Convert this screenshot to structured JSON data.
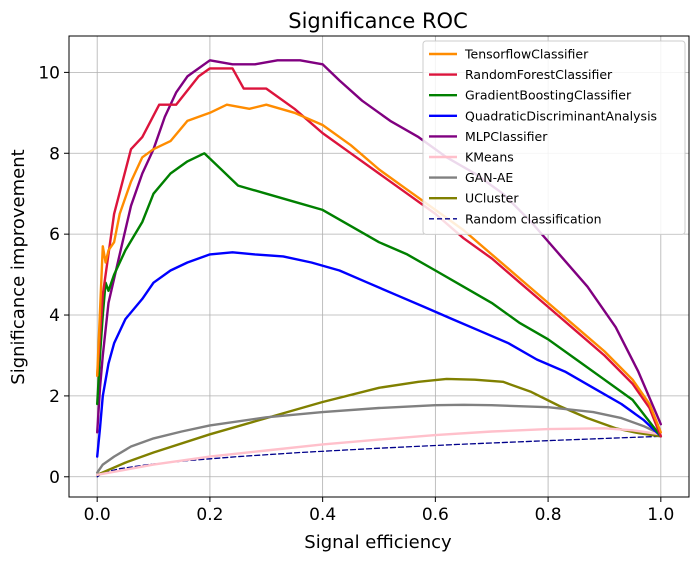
{
  "chart_data": {
    "type": "line",
    "title": "Significance ROC",
    "xlabel": "Signal efficiency",
    "ylabel": "Significance improvement",
    "xlim": [
      -0.05,
      1.05
    ],
    "ylim": [
      -0.5,
      10.9
    ],
    "xticks": [
      0.0,
      0.2,
      0.4,
      0.6,
      0.8,
      1.0
    ],
    "xtick_labels": [
      "0.0",
      "0.2",
      "0.4",
      "0.6",
      "0.8",
      "1.0"
    ],
    "yticks": [
      0,
      2,
      4,
      6,
      8,
      10
    ],
    "ytick_labels": [
      "0",
      "2",
      "4",
      "6",
      "8",
      "10"
    ],
    "grid": true,
    "legend_position": "top-right",
    "series": [
      {
        "name": "TensorflowClassifier",
        "color": "#ff8c00",
        "style": "solid",
        "points": [
          [
            0.0,
            2.5
          ],
          [
            0.01,
            5.7
          ],
          [
            0.015,
            5.3
          ],
          [
            0.02,
            5.6
          ],
          [
            0.03,
            5.8
          ],
          [
            0.04,
            6.5
          ],
          [
            0.06,
            7.3
          ],
          [
            0.08,
            7.9
          ],
          [
            0.1,
            8.1
          ],
          [
            0.13,
            8.3
          ],
          [
            0.16,
            8.8
          ],
          [
            0.2,
            9.0
          ],
          [
            0.23,
            9.2
          ],
          [
            0.27,
            9.1
          ],
          [
            0.3,
            9.2
          ],
          [
            0.35,
            9.0
          ],
          [
            0.4,
            8.7
          ],
          [
            0.45,
            8.2
          ],
          [
            0.5,
            7.6
          ],
          [
            0.55,
            7.1
          ],
          [
            0.6,
            6.6
          ],
          [
            0.65,
            6.1
          ],
          [
            0.7,
            5.5
          ],
          [
            0.75,
            4.9
          ],
          [
            0.8,
            4.3
          ],
          [
            0.85,
            3.7
          ],
          [
            0.9,
            3.1
          ],
          [
            0.95,
            2.4
          ],
          [
            0.98,
            1.8
          ],
          [
            1.0,
            1.1
          ]
        ]
      },
      {
        "name": "RandomForestClassifier",
        "color": "#dc143c",
        "style": "solid",
        "points": [
          [
            0.0,
            2.5
          ],
          [
            0.01,
            4.5
          ],
          [
            0.03,
            6.5
          ],
          [
            0.06,
            8.1
          ],
          [
            0.08,
            8.4
          ],
          [
            0.11,
            9.2
          ],
          [
            0.14,
            9.2
          ],
          [
            0.18,
            9.9
          ],
          [
            0.2,
            10.1
          ],
          [
            0.24,
            10.1
          ],
          [
            0.26,
            9.6
          ],
          [
            0.3,
            9.6
          ],
          [
            0.35,
            9.1
          ],
          [
            0.4,
            8.5
          ],
          [
            0.45,
            8.0
          ],
          [
            0.5,
            7.5
          ],
          [
            0.55,
            7.0
          ],
          [
            0.6,
            6.5
          ],
          [
            0.65,
            5.9
          ],
          [
            0.7,
            5.4
          ],
          [
            0.75,
            4.8
          ],
          [
            0.8,
            4.2
          ],
          [
            0.85,
            3.6
          ],
          [
            0.9,
            3.0
          ],
          [
            0.95,
            2.3
          ],
          [
            0.98,
            1.7
          ],
          [
            1.0,
            1.0
          ]
        ]
      },
      {
        "name": "GradientBoostingClassifier",
        "color": "#008000",
        "style": "solid",
        "points": [
          [
            0.0,
            1.8
          ],
          [
            0.005,
            3.0
          ],
          [
            0.01,
            4.0
          ],
          [
            0.015,
            4.8
          ],
          [
            0.02,
            4.6
          ],
          [
            0.03,
            5.0
          ],
          [
            0.05,
            5.6
          ],
          [
            0.08,
            6.3
          ],
          [
            0.1,
            7.0
          ],
          [
            0.13,
            7.5
          ],
          [
            0.16,
            7.8
          ],
          [
            0.19,
            8.0
          ],
          [
            0.22,
            7.6
          ],
          [
            0.25,
            7.2
          ],
          [
            0.3,
            7.0
          ],
          [
            0.35,
            6.8
          ],
          [
            0.4,
            6.6
          ],
          [
            0.45,
            6.2
          ],
          [
            0.5,
            5.8
          ],
          [
            0.55,
            5.5
          ],
          [
            0.6,
            5.1
          ],
          [
            0.65,
            4.7
          ],
          [
            0.7,
            4.3
          ],
          [
            0.75,
            3.8
          ],
          [
            0.8,
            3.4
          ],
          [
            0.85,
            2.9
          ],
          [
            0.9,
            2.4
          ],
          [
            0.95,
            1.9
          ],
          [
            1.0,
            1.0
          ]
        ]
      },
      {
        "name": "QuadraticDiscriminantAnalysis",
        "color": "#0000ff",
        "style": "solid",
        "points": [
          [
            0.0,
            0.5
          ],
          [
            0.005,
            1.2
          ],
          [
            0.01,
            2.0
          ],
          [
            0.02,
            2.8
          ],
          [
            0.03,
            3.3
          ],
          [
            0.05,
            3.9
          ],
          [
            0.08,
            4.4
          ],
          [
            0.1,
            4.8
          ],
          [
            0.13,
            5.1
          ],
          [
            0.16,
            5.3
          ],
          [
            0.2,
            5.5
          ],
          [
            0.24,
            5.55
          ],
          [
            0.28,
            5.5
          ],
          [
            0.33,
            5.45
          ],
          [
            0.38,
            5.3
          ],
          [
            0.43,
            5.1
          ],
          [
            0.48,
            4.8
          ],
          [
            0.53,
            4.5
          ],
          [
            0.58,
            4.2
          ],
          [
            0.63,
            3.9
          ],
          [
            0.68,
            3.6
          ],
          [
            0.73,
            3.3
          ],
          [
            0.78,
            2.9
          ],
          [
            0.83,
            2.6
          ],
          [
            0.88,
            2.2
          ],
          [
            0.93,
            1.8
          ],
          [
            0.97,
            1.4
          ],
          [
            1.0,
            1.0
          ]
        ]
      },
      {
        "name": "MLPClassifier",
        "color": "#800080",
        "style": "solid",
        "points": [
          [
            0.0,
            1.1
          ],
          [
            0.005,
            2.2
          ],
          [
            0.01,
            3.0
          ],
          [
            0.02,
            4.3
          ],
          [
            0.04,
            5.5
          ],
          [
            0.06,
            6.7
          ],
          [
            0.08,
            7.5
          ],
          [
            0.1,
            8.1
          ],
          [
            0.12,
            8.9
          ],
          [
            0.14,
            9.5
          ],
          [
            0.16,
            9.9
          ],
          [
            0.18,
            10.1
          ],
          [
            0.2,
            10.3
          ],
          [
            0.24,
            10.2
          ],
          [
            0.28,
            10.2
          ],
          [
            0.32,
            10.3
          ],
          [
            0.36,
            10.3
          ],
          [
            0.4,
            10.2
          ],
          [
            0.43,
            9.8
          ],
          [
            0.47,
            9.3
          ],
          [
            0.52,
            8.8
          ],
          [
            0.57,
            8.4
          ],
          [
            0.62,
            7.9
          ],
          [
            0.67,
            7.5
          ],
          [
            0.72,
            7.0
          ],
          [
            0.77,
            6.3
          ],
          [
            0.82,
            5.5
          ],
          [
            0.87,
            4.7
          ],
          [
            0.92,
            3.7
          ],
          [
            0.96,
            2.6
          ],
          [
            1.0,
            1.3
          ]
        ]
      },
      {
        "name": "KMeans",
        "color": "#ffc0cb",
        "style": "solid",
        "points": [
          [
            0.0,
            0.05
          ],
          [
            0.1,
            0.3
          ],
          [
            0.2,
            0.5
          ],
          [
            0.3,
            0.65
          ],
          [
            0.4,
            0.8
          ],
          [
            0.5,
            0.92
          ],
          [
            0.6,
            1.03
          ],
          [
            0.7,
            1.12
          ],
          [
            0.8,
            1.18
          ],
          [
            0.9,
            1.2
          ],
          [
            0.95,
            1.15
          ],
          [
            1.0,
            1.05
          ]
        ]
      },
      {
        "name": "GAN-AE",
        "color": "#808080",
        "style": "solid",
        "points": [
          [
            0.0,
            0.1
          ],
          [
            0.01,
            0.3
          ],
          [
            0.03,
            0.5
          ],
          [
            0.06,
            0.75
          ],
          [
            0.1,
            0.95
          ],
          [
            0.15,
            1.12
          ],
          [
            0.2,
            1.27
          ],
          [
            0.3,
            1.47
          ],
          [
            0.4,
            1.6
          ],
          [
            0.5,
            1.7
          ],
          [
            0.6,
            1.77
          ],
          [
            0.65,
            1.78
          ],
          [
            0.7,
            1.77
          ],
          [
            0.8,
            1.72
          ],
          [
            0.88,
            1.6
          ],
          [
            0.93,
            1.45
          ],
          [
            0.97,
            1.25
          ],
          [
            1.0,
            1.05
          ]
        ]
      },
      {
        "name": "UCluster",
        "color": "#808000",
        "style": "solid",
        "points": [
          [
            0.0,
            0.05
          ],
          [
            0.05,
            0.35
          ],
          [
            0.1,
            0.6
          ],
          [
            0.2,
            1.05
          ],
          [
            0.3,
            1.45
          ],
          [
            0.4,
            1.85
          ],
          [
            0.5,
            2.2
          ],
          [
            0.57,
            2.35
          ],
          [
            0.62,
            2.42
          ],
          [
            0.67,
            2.4
          ],
          [
            0.72,
            2.35
          ],
          [
            0.77,
            2.1
          ],
          [
            0.82,
            1.75
          ],
          [
            0.87,
            1.45
          ],
          [
            0.92,
            1.2
          ],
          [
            0.96,
            1.08
          ],
          [
            1.0,
            1.0
          ]
        ]
      },
      {
        "name": "Random classification",
        "color": "#00008b",
        "style": "dashed",
        "points": [
          [
            0.0,
            0.0
          ],
          [
            0.01,
            0.1
          ],
          [
            0.04,
            0.2
          ],
          [
            0.09,
            0.3
          ],
          [
            0.16,
            0.4
          ],
          [
            0.25,
            0.5
          ],
          [
            0.36,
            0.6
          ],
          [
            0.49,
            0.7
          ],
          [
            0.64,
            0.8
          ],
          [
            0.81,
            0.9
          ],
          [
            1.0,
            1.0
          ]
        ]
      }
    ]
  }
}
